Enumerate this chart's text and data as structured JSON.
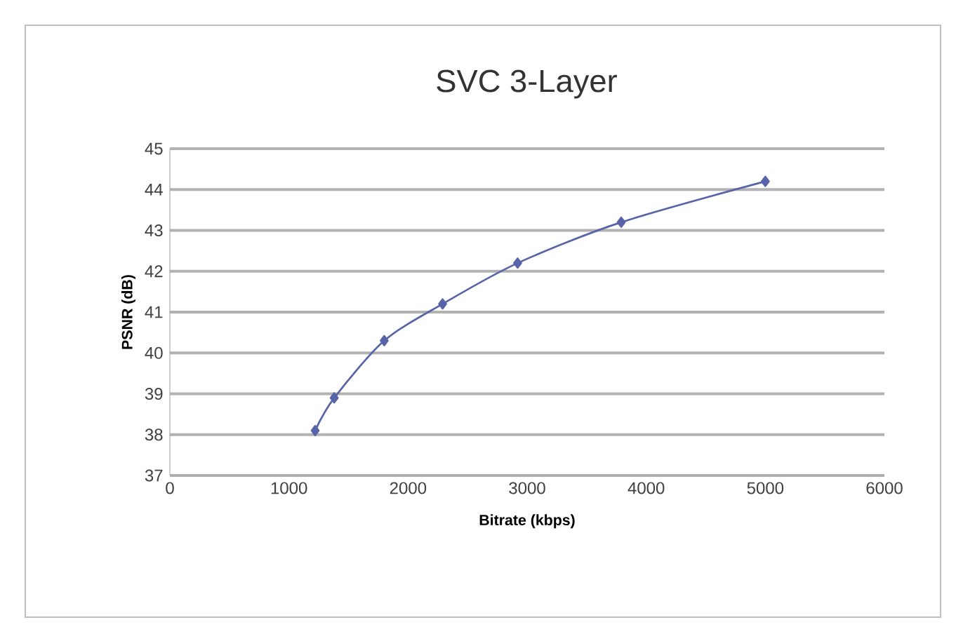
{
  "chart_data": {
    "type": "line",
    "title": "SVC 3-Layer",
    "xlabel": "Bitrate (kbps)",
    "ylabel": "PSNR (dB)",
    "x": [
      1220,
      1380,
      1800,
      2290,
      2920,
      3790,
      5000
    ],
    "series": [
      {
        "color": "#5864a8",
        "values": [
          38.1,
          38.9,
          40.3,
          41.2,
          42.2,
          43.2,
          44.2
        ]
      }
    ],
    "xlim": [
      0,
      6000
    ],
    "xticks": [
      0,
      1000,
      2000,
      3000,
      4000,
      5000,
      6000
    ],
    "ylim": [
      37,
      45
    ],
    "yticks": [
      37,
      38,
      39,
      40,
      41,
      42,
      43,
      44,
      45
    ],
    "grid": "y",
    "marker": "diamond",
    "line_style": "solid"
  }
}
